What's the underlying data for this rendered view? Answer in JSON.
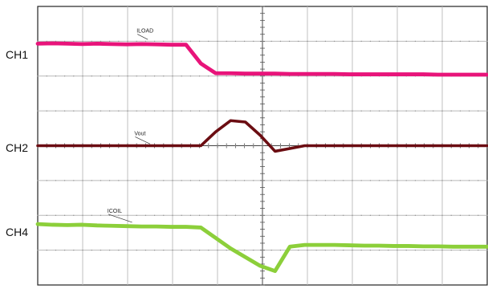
{
  "channels": {
    "ch1": "CH1",
    "ch2": "CH2",
    "ch4": "CH4"
  },
  "chart_data": {
    "type": "line",
    "grid": true,
    "grid_divisions": {
      "x": 10,
      "y": 8
    },
    "x": [
      0,
      0.33,
      0.66,
      0.99,
      1.32,
      1.65,
      1.98,
      2.31,
      2.64,
      2.97,
      3.3,
      3.63,
      3.96,
      4.29,
      4.62,
      4.95,
      5.28,
      5.61,
      5.94,
      6.27,
      6.6,
      6.93,
      7.26,
      7.59,
      7.92,
      8.25,
      8.58,
      8.91,
      9.24,
      9.57,
      9.9,
      10.0
    ],
    "xlim": [
      0,
      10
    ],
    "ylim": [
      -4,
      4
    ],
    "series": [
      {
        "name": "ILOAD",
        "color": "#e8147a",
        "values": [
          2.93,
          2.94,
          2.93,
          2.92,
          2.93,
          2.92,
          2.91,
          2.92,
          2.91,
          2.9,
          2.9,
          2.36,
          2.08,
          2.08,
          2.07,
          2.07,
          2.07,
          2.06,
          2.06,
          2.06,
          2.06,
          2.05,
          2.05,
          2.05,
          2.05,
          2.05,
          2.05,
          2.04,
          2.04,
          2.04,
          2.04,
          2.04
        ]
      },
      {
        "name": "Vout",
        "color": "#6b0d12",
        "values": [
          0.0,
          0.0,
          0.0,
          0.0,
          0.0,
          0.0,
          0.0,
          0.0,
          0.0,
          0.0,
          0.0,
          0.0,
          0.4,
          0.72,
          0.68,
          0.3,
          -0.16,
          -0.08,
          0.0,
          0.0,
          0.0,
          0.0,
          0.0,
          0.0,
          0.0,
          0.0,
          0.0,
          0.0,
          0.0,
          0.0,
          0.0,
          0.0
        ]
      },
      {
        "name": "ICOIL",
        "color": "#8ccf3a",
        "values": [
          -2.25,
          -2.27,
          -2.28,
          -2.27,
          -2.29,
          -2.3,
          -2.31,
          -2.32,
          -2.32,
          -2.33,
          -2.33,
          -2.35,
          -2.65,
          -2.95,
          -3.2,
          -3.45,
          -3.6,
          -2.9,
          -2.85,
          -2.85,
          -2.85,
          -2.86,
          -2.87,
          -2.87,
          -2.88,
          -2.88,
          -2.89,
          -2.89,
          -2.9,
          -2.9,
          -2.9,
          -2.9
        ]
      }
    ]
  }
}
